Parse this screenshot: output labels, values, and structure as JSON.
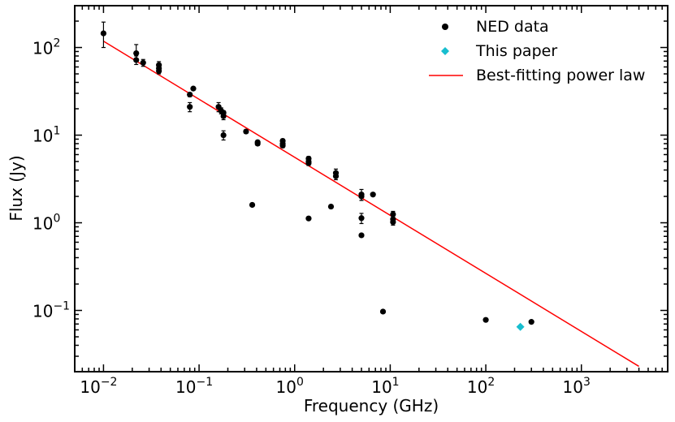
{
  "chart_data": {
    "type": "scatter",
    "title": "",
    "xlabel": "Frequency (GHz)",
    "ylabel": "Flux (Jy)",
    "xscale": "log",
    "yscale": "log",
    "xlim": [
      0.005,
      8000
    ],
    "ylim": [
      0.02,
      300
    ],
    "legend_position": "top-right",
    "x_ticks": [
      {
        "value": 0.01,
        "base": "10",
        "exp": "−2"
      },
      {
        "value": 0.1,
        "base": "10",
        "exp": "−1"
      },
      {
        "value": 1,
        "base": "10",
        "exp": "0"
      },
      {
        "value": 10,
        "base": "10",
        "exp": "1"
      },
      {
        "value": 100,
        "base": "10",
        "exp": "2"
      },
      {
        "value": 1000,
        "base": "10",
        "exp": "3"
      }
    ],
    "y_ticks": [
      {
        "value": 0.1,
        "base": "10",
        "exp": "−1"
      },
      {
        "value": 1,
        "base": "10",
        "exp": "0"
      },
      {
        "value": 10,
        "base": "10",
        "exp": "1"
      },
      {
        "value": 100,
        "base": "10",
        "exp": "2"
      }
    ],
    "series": [
      {
        "name": "NED data",
        "marker": "circle",
        "color": "#000000",
        "points": [
          {
            "x": 0.01,
            "y": 145,
            "err_lo": 45,
            "err_hi": 50
          },
          {
            "x": 0.022,
            "y": 86,
            "err_lo": 16,
            "err_hi": 22
          },
          {
            "x": 0.022,
            "y": 72,
            "err_lo": 8,
            "err_hi": 8
          },
          {
            "x": 0.026,
            "y": 67,
            "err_lo": 6,
            "err_hi": 6
          },
          {
            "x": 0.038,
            "y": 63,
            "err_lo": 6,
            "err_hi": 6
          },
          {
            "x": 0.038,
            "y": 58,
            "err_lo": 5,
            "err_hi": 5
          },
          {
            "x": 0.038,
            "y": 54,
            "err_lo": 4,
            "err_hi": 4
          },
          {
            "x": 0.08,
            "y": 29,
            "err_lo": 1.5,
            "err_hi": 1.5
          },
          {
            "x": 0.08,
            "y": 21,
            "err_lo": 2.5,
            "err_hi": 2.5
          },
          {
            "x": 0.087,
            "y": 34,
            "err_lo": 1,
            "err_hi": 1
          },
          {
            "x": 0.16,
            "y": 21,
            "err_lo": 2.5,
            "err_hi": 2.5
          },
          {
            "x": 0.17,
            "y": 19,
            "err_lo": 1.5,
            "err_hi": 1.5
          },
          {
            "x": 0.18,
            "y": 18,
            "err_lo": 1,
            "err_hi": 1
          },
          {
            "x": 0.18,
            "y": 16.5,
            "err_lo": 1.5,
            "err_hi": 1.5
          },
          {
            "x": 0.18,
            "y": 10,
            "err_lo": 1.2,
            "err_hi": 1.2
          },
          {
            "x": 0.31,
            "y": 11,
            "err_lo": 0.5,
            "err_hi": 0.5
          },
          {
            "x": 0.36,
            "y": 1.6,
            "err_lo": 0,
            "err_hi": 0
          },
          {
            "x": 0.41,
            "y": 8.3,
            "err_lo": 0.4,
            "err_hi": 0.4
          },
          {
            "x": 0.41,
            "y": 8.0,
            "err_lo": 0.4,
            "err_hi": 0.4
          },
          {
            "x": 0.75,
            "y": 8.6,
            "err_lo": 0.4,
            "err_hi": 0.4
          },
          {
            "x": 0.75,
            "y": 8.0,
            "err_lo": 0.4,
            "err_hi": 0.4
          },
          {
            "x": 0.75,
            "y": 7.6,
            "err_lo": 0.4,
            "err_hi": 0.4
          },
          {
            "x": 1.4,
            "y": 5.4,
            "err_lo": 0.3,
            "err_hi": 0.3
          },
          {
            "x": 1.4,
            "y": 5.0,
            "err_lo": 0.3,
            "err_hi": 0.3
          },
          {
            "x": 1.4,
            "y": 4.8,
            "err_lo": 0.3,
            "err_hi": 0.3
          },
          {
            "x": 1.4,
            "y": 1.12,
            "err_lo": 0,
            "err_hi": 0
          },
          {
            "x": 2.4,
            "y": 1.53,
            "err_lo": 0,
            "err_hi": 0
          },
          {
            "x": 2.7,
            "y": 3.7,
            "err_lo": 0.4,
            "err_hi": 0.4
          },
          {
            "x": 2.7,
            "y": 3.4,
            "err_lo": 0.3,
            "err_hi": 0.3
          },
          {
            "x": 5.0,
            "y": 2.1,
            "err_lo": 0.3,
            "err_hi": 0.3
          },
          {
            "x": 5.0,
            "y": 2.0,
            "err_lo": 0.2,
            "err_hi": 0.2
          },
          {
            "x": 5.0,
            "y": 1.13,
            "err_lo": 0.15,
            "err_hi": 0.15
          },
          {
            "x": 5.0,
            "y": 0.72,
            "err_lo": 0,
            "err_hi": 0
          },
          {
            "x": 6.6,
            "y": 2.1,
            "err_lo": 0,
            "err_hi": 0
          },
          {
            "x": 8.4,
            "y": 0.097,
            "err_lo": 0,
            "err_hi": 0
          },
          {
            "x": 10.7,
            "y": 1.25,
            "err_lo": 0.1,
            "err_hi": 0.1
          },
          {
            "x": 10.7,
            "y": 1.1,
            "err_lo": 0.1,
            "err_hi": 0.1
          },
          {
            "x": 10.7,
            "y": 1.02,
            "err_lo": 0.08,
            "err_hi": 0.08
          },
          {
            "x": 100,
            "y": 0.078,
            "err_lo": 0,
            "err_hi": 0
          },
          {
            "x": 300,
            "y": 0.074,
            "err_lo": 0,
            "err_hi": 0
          }
        ]
      },
      {
        "name": "This paper",
        "marker": "diamond",
        "color": "#17becf",
        "points": [
          {
            "x": 230,
            "y": 0.065,
            "err_lo": 0,
            "err_hi": 0
          }
        ]
      }
    ],
    "fit": {
      "name": "Best-fitting power law",
      "color": "#ff0000",
      "x": [
        0.01,
        4000
      ],
      "y": [
        118,
        0.023
      ]
    }
  }
}
